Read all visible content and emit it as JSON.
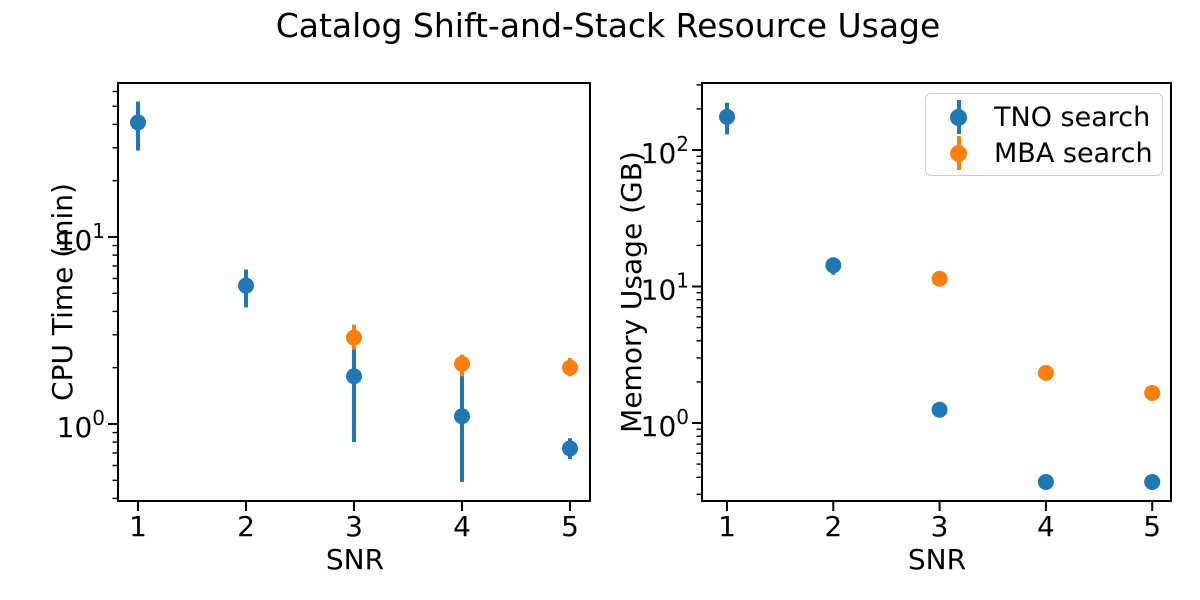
{
  "title": "Catalog Shift-and-Stack Resource Usage",
  "legend": {
    "items": [
      {
        "label": "TNO search",
        "color": "#1f77b4"
      },
      {
        "label": "MBA search",
        "color": "#ff7f0e"
      }
    ]
  },
  "chart_data": [
    {
      "type": "scatter",
      "subplot": "left",
      "xlabel": "SNR",
      "ylabel": "CPU Time (min)",
      "yscale": "log",
      "grid": false,
      "legend_position": "none",
      "xticks": [
        1,
        2,
        3,
        4,
        5
      ],
      "yticks": [
        {
          "value": 1,
          "base": "10",
          "exp": "0"
        },
        {
          "value": 10,
          "base": "10",
          "exp": "1"
        }
      ],
      "xlim": [
        0.81,
        5.19
      ],
      "ylim": [
        0.39,
        67
      ],
      "series": [
        {
          "name": "TNO search",
          "color": "#1f77b4",
          "x": [
            1,
            2,
            3,
            4,
            5
          ],
          "y": [
            41,
            5.5,
            1.8,
            1.1,
            0.74
          ],
          "ylo": [
            29,
            4.2,
            0.8,
            0.49,
            0.65
          ],
          "yhi": [
            53,
            6.7,
            2.6,
            1.9,
            0.84
          ]
        },
        {
          "name": "MBA search",
          "color": "#ff7f0e",
          "x": [
            3,
            4,
            5
          ],
          "y": [
            2.9,
            2.1,
            2.0
          ],
          "ylo": [
            2.5,
            1.8,
            1.8
          ],
          "yhi": [
            3.4,
            2.35,
            2.25
          ]
        }
      ]
    },
    {
      "type": "scatter",
      "subplot": "right",
      "xlabel": "SNR",
      "ylabel": "Memory Usage (GB)",
      "yscale": "log",
      "grid": false,
      "legend_position": "upper right",
      "xticks": [
        1,
        2,
        3,
        4,
        5
      ],
      "yticks": [
        {
          "value": 1,
          "base": "10",
          "exp": "0"
        },
        {
          "value": 10,
          "base": "10",
          "exp": "1"
        },
        {
          "value": 100,
          "base": "10",
          "exp": "2"
        }
      ],
      "xlim": [
        0.76,
        5.23
      ],
      "ylim": [
        0.27,
        310
      ],
      "series": [
        {
          "name": "TNO search",
          "color": "#1f77b4",
          "x": [
            1,
            2,
            3,
            4,
            5
          ],
          "y": [
            175,
            14.3,
            1.25,
            0.37,
            0.37
          ],
          "ylo": [
            130,
            12.2,
            1.25,
            0.37,
            0.37
          ],
          "yhi": [
            222,
            16.2,
            1.25,
            0.37,
            0.37
          ]
        },
        {
          "name": "MBA search",
          "color": "#ff7f0e",
          "x": [
            3,
            4,
            5
          ],
          "y": [
            11.4,
            2.33,
            1.66
          ],
          "ylo": [
            11.4,
            2.33,
            1.66
          ],
          "yhi": [
            11.4,
            2.33,
            1.66
          ]
        }
      ]
    }
  ]
}
